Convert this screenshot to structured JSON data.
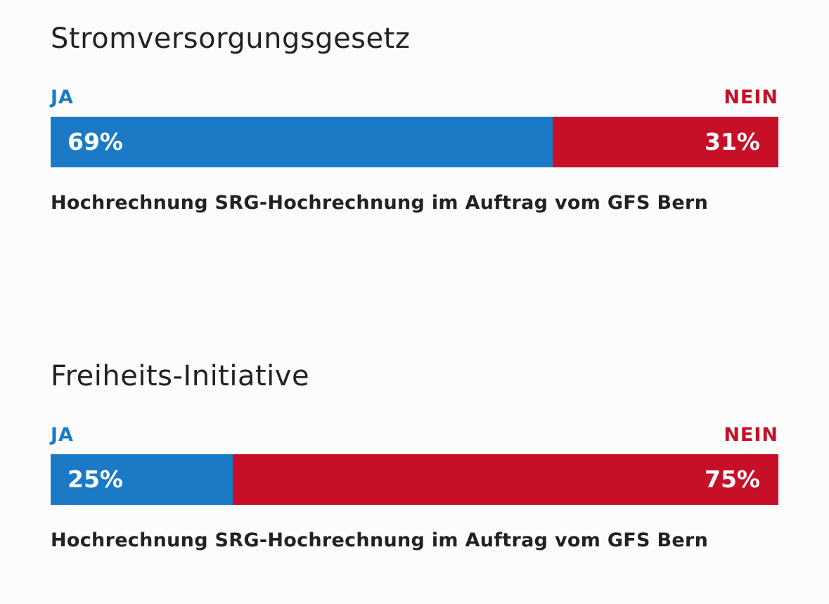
{
  "colors": {
    "ja": "#1b7ac6",
    "nein": "#c70f27",
    "text": "#222222",
    "background": "#fcfcfc"
  },
  "chart_data": [
    {
      "type": "bar",
      "title": "Stromversorgungsgesetz",
      "categories": [
        "JA",
        "NEIN"
      ],
      "values": [
        69,
        31
      ],
      "value_labels": [
        "69%",
        "31%"
      ],
      "unit": "%",
      "orientation": "horizontal-stacked",
      "note": "Hochrechnung SRG-Hochrechnung im Auftrag vom GFS Bern"
    },
    {
      "type": "bar",
      "title": "Freiheits-Initiative",
      "categories": [
        "JA",
        "NEIN"
      ],
      "values": [
        25,
        75
      ],
      "value_labels": [
        "25%",
        "75%"
      ],
      "unit": "%",
      "orientation": "horizontal-stacked",
      "note": "Hochrechnung SRG-Hochrechnung im Auftrag vom GFS Bern"
    }
  ]
}
